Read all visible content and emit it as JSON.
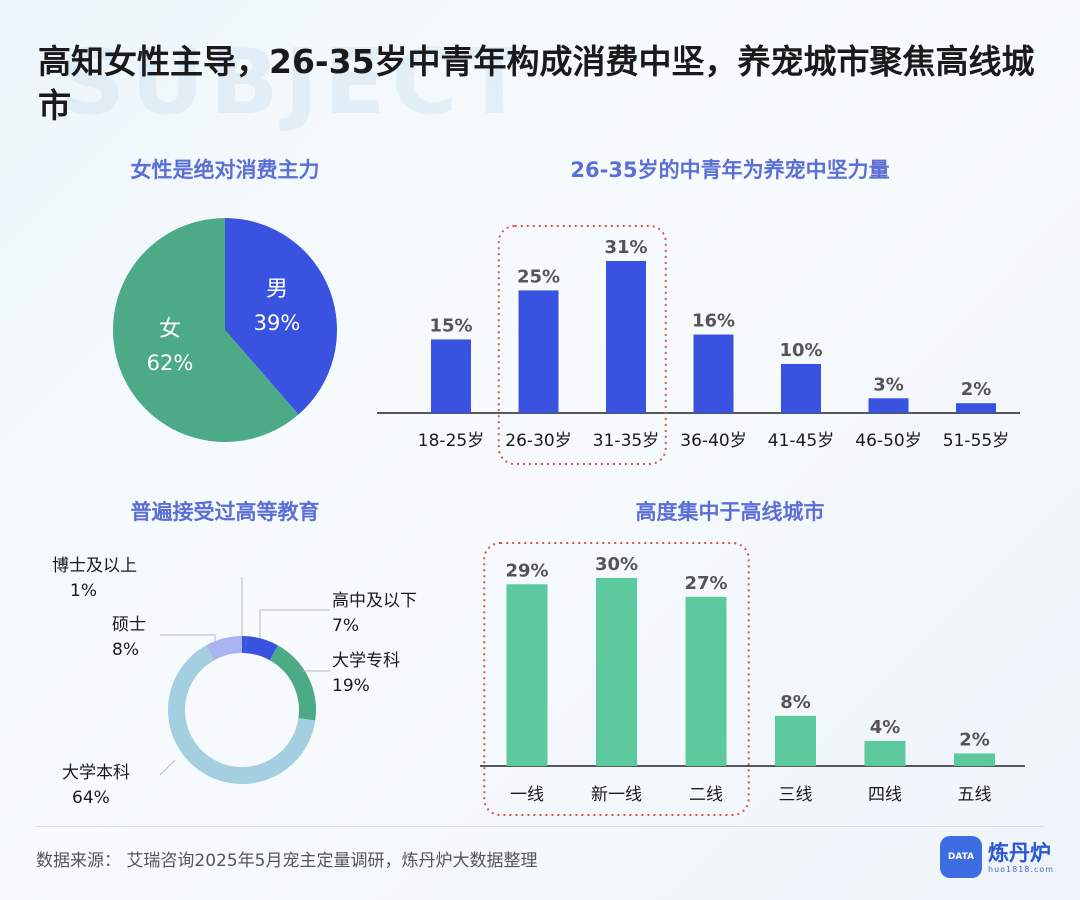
{
  "watermark": "SUBJECT",
  "title": "高知女性主导，26-35岁中青年构成消费中坚，养宠城市聚焦高线城市",
  "panels": {
    "gender_title": "女性是绝对消费主力",
    "age_title": "26-35岁的中青年为养宠中坚力量",
    "education_title": "普遍接受过高等教育",
    "city_title": "高度集中于高线城市"
  },
  "colors": {
    "male": "#3a52e0",
    "female": "#4caa86",
    "age_bar": "#3a52e0",
    "city_bar": "#5cc99e",
    "highlight_box": "#d9534f",
    "edu_phd": "#3a52e0",
    "edu_high_school": "#3a52e0",
    "edu_college": "#4caa86",
    "edu_bachelor": "#a3cfe0",
    "edu_master": "#a9b4f0"
  },
  "chart_data": [
    {
      "type": "pie",
      "title": "女性是绝对消费主力",
      "slices": [
        {
          "label": "男",
          "value": 39,
          "display": "39%"
        },
        {
          "label": "女",
          "value": 62,
          "display": "62%"
        }
      ]
    },
    {
      "type": "bar",
      "title": "26-35岁的中青年为养宠中坚力量",
      "categories": [
        "18-25岁",
        "26-30岁",
        "31-35岁",
        "36-40岁",
        "41-45岁",
        "46-50岁",
        "51-55岁"
      ],
      "values": [
        15,
        25,
        31,
        16,
        10,
        3,
        2
      ],
      "labels": [
        "15%",
        "25%",
        "31%",
        "16%",
        "10%",
        "3%",
        "2%"
      ],
      "highlight": [
        "26-30岁",
        "31-35岁"
      ],
      "ylim": [
        0,
        31
      ]
    },
    {
      "type": "pie",
      "title": "普遍接受过高等教育",
      "slices": [
        {
          "label": "博士及以上",
          "value": 1,
          "display": "1%"
        },
        {
          "label": "高中及以下",
          "value": 7,
          "display": "7%"
        },
        {
          "label": "大学专科",
          "value": 19,
          "display": "19%"
        },
        {
          "label": "大学本科",
          "value": 64,
          "display": "64%"
        },
        {
          "label": "硕士",
          "value": 8,
          "display": "8%"
        }
      ]
    },
    {
      "type": "bar",
      "title": "高度集中于高线城市",
      "categories": [
        "一线",
        "新一线",
        "二线",
        "三线",
        "四线",
        "五线"
      ],
      "values": [
        29,
        30,
        27,
        8,
        4,
        2
      ],
      "labels": [
        "29%",
        "30%",
        "27%",
        "8%",
        "4%",
        "2%"
      ],
      "highlight": [
        "一线",
        "新一线",
        "二线"
      ],
      "ylim": [
        0,
        30
      ]
    }
  ],
  "footer": {
    "source": "数据来源：  艾瑞咨询2025年5月宠主定量调研，炼丹炉大数据整理",
    "logo_name": "炼丹炉",
    "logo_url": "huo1818.com",
    "logo_badge": "DATA"
  }
}
